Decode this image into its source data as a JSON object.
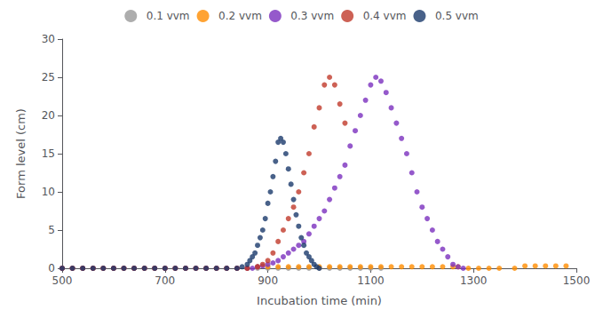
{
  "chart_data": {
    "type": "scatter",
    "xlabel": "Incubation time (min)",
    "ylabel": "Form level (cm)",
    "xlim": [
      500,
      1500
    ],
    "ylim": [
      0,
      30
    ],
    "xticks": [
      500,
      700,
      900,
      1100,
      1300,
      1500
    ],
    "yticks": [
      0,
      5,
      10,
      15,
      20,
      25,
      30
    ],
    "grid": false,
    "legend": "top",
    "series": [
      {
        "name": "0.1 vvm",
        "color": "#999999",
        "x": [
          500,
          520,
          540,
          560,
          580,
          600,
          620,
          640,
          660,
          680,
          700,
          720,
          740,
          760,
          780,
          800,
          820,
          840,
          860,
          880,
          900,
          920,
          940,
          960,
          980,
          1000,
          1020,
          1040,
          1060,
          1080,
          1100,
          1120
        ],
        "values": [
          0,
          0,
          0,
          0,
          0,
          0,
          0,
          0,
          0,
          0,
          0,
          0,
          0,
          0,
          0,
          0,
          0,
          0,
          0,
          0,
          0,
          0,
          0,
          0,
          0,
          0,
          0,
          0,
          0,
          0,
          0,
          0
        ]
      },
      {
        "name": "0.2 vvm",
        "color": "#FF8C00",
        "x": [
          500,
          520,
          540,
          560,
          580,
          600,
          620,
          640,
          660,
          680,
          700,
          720,
          740,
          760,
          780,
          800,
          820,
          840,
          860,
          880,
          900,
          920,
          940,
          960,
          980,
          1000,
          1020,
          1040,
          1060,
          1080,
          1100,
          1120,
          1140,
          1160,
          1180,
          1200,
          1220,
          1240,
          1260,
          1270,
          1290,
          1310,
          1330,
          1350,
          1380,
          1400,
          1420,
          1440,
          1460,
          1480
        ],
        "values": [
          0,
          0,
          0,
          0,
          0,
          0,
          0,
          0,
          0,
          0,
          0,
          0,
          0,
          0,
          0,
          0,
          0,
          0,
          0,
          0.2,
          0.2,
          0.2,
          0.2,
          0.2,
          0.2,
          0.2,
          0.2,
          0.2,
          0.2,
          0.2,
          0.2,
          0.2,
          0.2,
          0.2,
          0.2,
          0.2,
          0.2,
          0.2,
          0.2,
          0.2,
          0,
          0,
          0,
          0,
          0,
          0.3,
          0.3,
          0.3,
          0.3,
          0.3
        ]
      },
      {
        "name": "0.3 vvm",
        "color": "#7B2FBE",
        "x": [
          500,
          520,
          540,
          560,
          580,
          600,
          620,
          640,
          660,
          680,
          700,
          720,
          740,
          760,
          780,
          800,
          820,
          840,
          860,
          870,
          880,
          890,
          900,
          910,
          920,
          930,
          940,
          950,
          960,
          970,
          980,
          990,
          1000,
          1010,
          1020,
          1030,
          1040,
          1050,
          1060,
          1070,
          1080,
          1090,
          1100,
          1110,
          1120,
          1130,
          1140,
          1150,
          1160,
          1170,
          1180,
          1190,
          1200,
          1210,
          1220,
          1230,
          1240,
          1250,
          1260,
          1270,
          1280
        ],
        "values": [
          0,
          0,
          0,
          0,
          0,
          0,
          0,
          0,
          0,
          0,
          0,
          0,
          0,
          0,
          0,
          0,
          0,
          0,
          0,
          0,
          0.2,
          0.3,
          0.5,
          0.7,
          1.0,
          1.5,
          2.0,
          2.5,
          3.0,
          3.5,
          4.5,
          5.5,
          6.5,
          7.5,
          9.0,
          10.5,
          12.0,
          13.5,
          16.0,
          18.0,
          20.0,
          22.0,
          24.0,
          25.0,
          24.5,
          23.0,
          21.0,
          19.0,
          17.0,
          15.0,
          12.5,
          10.0,
          8.0,
          6.5,
          5.0,
          3.5,
          2.5,
          1.5,
          0.5,
          0.2,
          0
        ]
      },
      {
        "name": "0.4 vvm",
        "color": "#C0392B",
        "x": [
          500,
          520,
          540,
          560,
          580,
          600,
          620,
          640,
          660,
          680,
          700,
          720,
          740,
          760,
          780,
          800,
          820,
          840,
          860,
          880,
          890,
          900,
          910,
          920,
          930,
          940,
          950,
          960,
          970,
          980,
          990,
          1000,
          1010,
          1020,
          1030,
          1040,
          1050
        ],
        "values": [
          0,
          0,
          0,
          0,
          0,
          0,
          0,
          0,
          0,
          0,
          0,
          0,
          0,
          0,
          0,
          0,
          0,
          0,
          0,
          0.2,
          0.5,
          1.0,
          2.0,
          3.5,
          5.0,
          6.5,
          8.0,
          10.0,
          12.5,
          15.0,
          18.5,
          21.0,
          24.0,
          25.0,
          24.0,
          21.5,
          19.0
        ]
      },
      {
        "name": "0.5 vvm",
        "color": "#1A3A6B",
        "x": [
          500,
          520,
          540,
          560,
          580,
          600,
          620,
          640,
          660,
          680,
          700,
          720,
          740,
          760,
          780,
          800,
          820,
          840,
          850,
          860,
          865,
          870,
          875,
          880,
          885,
          890,
          895,
          900,
          905,
          910,
          915,
          920,
          925,
          930,
          935,
          940,
          945,
          950,
          955,
          960,
          965,
          970,
          975,
          980,
          985,
          990,
          995,
          1000
        ],
        "values": [
          0,
          0,
          0,
          0,
          0,
          0,
          0,
          0,
          0,
          0,
          0,
          0,
          0,
          0,
          0,
          0,
          0,
          0,
          0.2,
          0.5,
          1.0,
          1.5,
          2.0,
          3.0,
          4.0,
          5.0,
          6.5,
          8.5,
          10.0,
          12.0,
          14.0,
          16.5,
          17.0,
          16.5,
          15.0,
          13.0,
          11.0,
          9.0,
          7.0,
          5.5,
          4.0,
          3.0,
          2.0,
          1.5,
          1.0,
          0.5,
          0.2,
          0
        ]
      }
    ]
  }
}
